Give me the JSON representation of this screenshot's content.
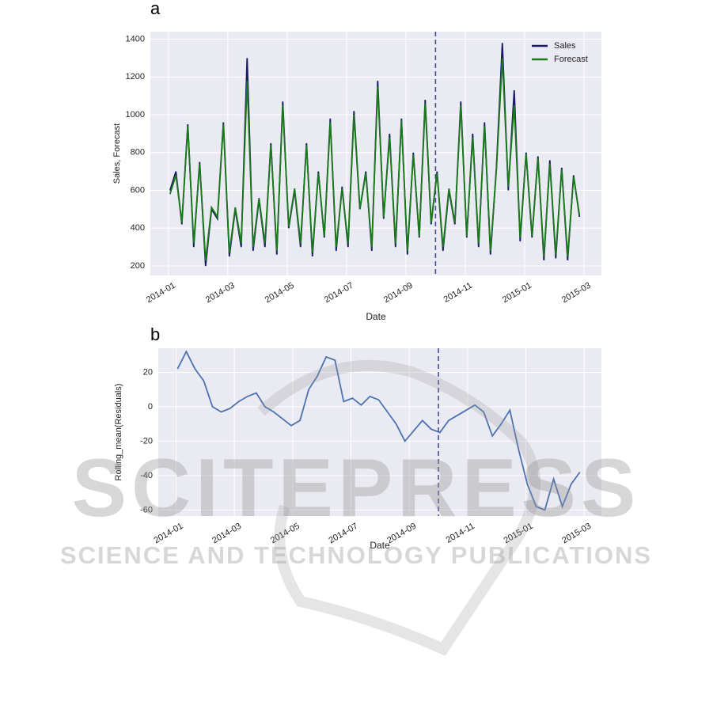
{
  "chart_data": [
    {
      "type": "line",
      "panel_label": "a",
      "xlabel": "Date",
      "ylabel": "Sales, Forecast",
      "xlim": [
        -0.61,
        14.59
      ],
      "ylim": [
        150,
        1440
      ],
      "xticks": [
        {
          "value": 0,
          "label": "2014-01"
        },
        {
          "value": 2,
          "label": "2014-03"
        },
        {
          "value": 4,
          "label": "2014-05"
        },
        {
          "value": 6,
          "label": "2014-07"
        },
        {
          "value": 8,
          "label": "2014-09"
        },
        {
          "value": 10,
          "label": "2014-11"
        },
        {
          "value": 12,
          "label": "2015-01"
        },
        {
          "value": 14,
          "label": "2015-03"
        }
      ],
      "yticks": [
        200,
        400,
        600,
        800,
        1000,
        1200,
        1400
      ],
      "grid": true,
      "legend": "upper right",
      "vline": 9,
      "vline_color": "#4a4a9a",
      "x": [
        0.05,
        0.25,
        0.45,
        0.65,
        0.85,
        1.05,
        1.25,
        1.45,
        1.65,
        1.85,
        2.05,
        2.25,
        2.45,
        2.65,
        2.85,
        3.05,
        3.25,
        3.45,
        3.65,
        3.85,
        4.05,
        4.25,
        4.45,
        4.65,
        4.85,
        5.05,
        5.25,
        5.45,
        5.65,
        5.85,
        6.05,
        6.25,
        6.45,
        6.65,
        6.85,
        7.05,
        7.25,
        7.45,
        7.65,
        7.85,
        8.05,
        8.25,
        8.45,
        8.65,
        8.85,
        9.05,
        9.25,
        9.45,
        9.65,
        9.85,
        10.05,
        10.25,
        10.45,
        10.65,
        10.85,
        11.05,
        11.25,
        11.45,
        11.65,
        11.85,
        12.05,
        12.25,
        12.45,
        12.65,
        12.85,
        13.05,
        13.25,
        13.45,
        13.65,
        13.85
      ],
      "series": [
        {
          "name": "Sales",
          "color": "#1c1c66",
          "values": [
            600,
            700,
            420,
            950,
            300,
            750,
            200,
            500,
            450,
            960,
            250,
            500,
            300,
            1300,
            280,
            550,
            300,
            850,
            260,
            1070,
            400,
            600,
            300,
            850,
            250,
            700,
            350,
            980,
            280,
            620,
            300,
            1020,
            500,
            700,
            280,
            1180,
            450,
            900,
            300,
            980,
            260,
            800,
            350,
            1080,
            420,
            700,
            280,
            600,
            420,
            1070,
            350,
            900,
            300,
            960,
            260,
            720,
            1380,
            600,
            1130,
            330,
            800,
            350,
            780,
            230,
            760,
            240,
            720,
            230,
            680,
            460
          ]
        },
        {
          "name": "Forecast",
          "color": "#1a7a1a",
          "values": [
            580,
            680,
            430,
            940,
            320,
            740,
            230,
            510,
            460,
            950,
            270,
            510,
            320,
            1180,
            300,
            560,
            320,
            840,
            280,
            1050,
            410,
            610,
            320,
            840,
            270,
            690,
            360,
            960,
            300,
            610,
            320,
            1000,
            500,
            690,
            300,
            1150,
            460,
            880,
            320,
            970,
            280,
            790,
            360,
            1060,
            430,
            690,
            300,
            610,
            430,
            1050,
            360,
            880,
            320,
            940,
            280,
            710,
            1300,
            620,
            1050,
            350,
            790,
            360,
            770,
            250,
            740,
            260,
            710,
            250,
            670,
            470
          ]
        }
      ]
    },
    {
      "type": "line",
      "panel_label": "b",
      "xlabel": "Date",
      "ylabel": "Rolling_mean(Residuals)",
      "xlim": [
        -0.61,
        14.59
      ],
      "ylim": [
        -63.5,
        34
      ],
      "xticks": [
        {
          "value": 0,
          "label": "2014-01"
        },
        {
          "value": 2,
          "label": "2014-03"
        },
        {
          "value": 4,
          "label": "2014-05"
        },
        {
          "value": 6,
          "label": "2014-07"
        },
        {
          "value": 8,
          "label": "2014-09"
        },
        {
          "value": 10,
          "label": "2014-11"
        },
        {
          "value": 12,
          "label": "2015-01"
        },
        {
          "value": 14,
          "label": "2015-03"
        }
      ],
      "yticks": [
        -60,
        -40,
        -20,
        0,
        20
      ],
      "grid": true,
      "vline": 9,
      "vline_color": "#4a4a9a",
      "color": "#4c72b0",
      "x": [
        0.05,
        0.35,
        0.65,
        0.95,
        1.25,
        1.55,
        1.85,
        2.15,
        2.45,
        2.75,
        3.05,
        3.35,
        3.65,
        3.95,
        4.25,
        4.55,
        4.85,
        5.15,
        5.45,
        5.75,
        6.05,
        6.35,
        6.65,
        6.95,
        7.25,
        7.55,
        7.85,
        8.15,
        8.45,
        8.75,
        9.05,
        9.35,
        9.65,
        9.95,
        10.25,
        10.55,
        10.85,
        11.15,
        11.45,
        11.75,
        12.05,
        12.35,
        12.65,
        12.95,
        13.25,
        13.55,
        13.85
      ],
      "values": [
        22,
        32,
        22,
        15,
        0,
        -3,
        -1,
        3,
        6,
        8,
        0,
        -3,
        -7,
        -11,
        -8,
        10,
        18,
        29,
        27,
        3,
        5,
        1,
        6,
        4,
        -3,
        -10,
        -20,
        -14,
        -8,
        -13,
        -15,
        -8,
        -5,
        -2,
        1,
        -3,
        -17,
        -10,
        -2,
        -25,
        -45,
        -58,
        -60,
        -42,
        -58,
        -45,
        -38
      ]
    }
  ],
  "watermark": {
    "title": "SCITEPRESS",
    "subtitle": "SCIENCE AND TECHNOLOGY PUBLICATIONS"
  }
}
